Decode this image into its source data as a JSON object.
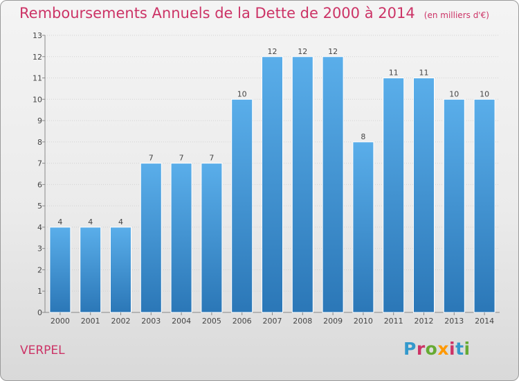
{
  "header": {
    "title": "Remboursements Annuels de la Dette de 2000 à 2014",
    "unit": "(en milliers d'€)"
  },
  "footer": {
    "commune": "VERPEL",
    "logo": "Proxiti"
  },
  "colors": {
    "title": "#cc3366",
    "bar_top": "#5aaeea",
    "bar_bottom": "#2b77b7",
    "logo_letters": [
      "#3399cc",
      "#cc3366",
      "#66aa33",
      "#ff9900",
      "#cc3366",
      "#3399cc",
      "#66aa33"
    ]
  },
  "chart_data": {
    "type": "bar",
    "title": "Remboursements Annuels de la Dette de 2000 à 2014",
    "subtitle": "(en milliers d'€)",
    "xlabel": "",
    "ylabel": "",
    "categories": [
      "2000",
      "2001",
      "2002",
      "2003",
      "2004",
      "2005",
      "2006",
      "2007",
      "2008",
      "2009",
      "2010",
      "2011",
      "2012",
      "2013",
      "2014"
    ],
    "values": [
      4,
      4,
      4,
      7,
      7,
      7,
      10,
      12,
      12,
      12,
      8,
      11,
      11,
      10,
      10
    ],
    "ylim": [
      0,
      13
    ],
    "yticks": [
      0,
      1,
      2,
      3,
      4,
      5,
      6,
      7,
      8,
      9,
      10,
      11,
      12,
      13
    ],
    "grid": true,
    "data_labels": true
  }
}
